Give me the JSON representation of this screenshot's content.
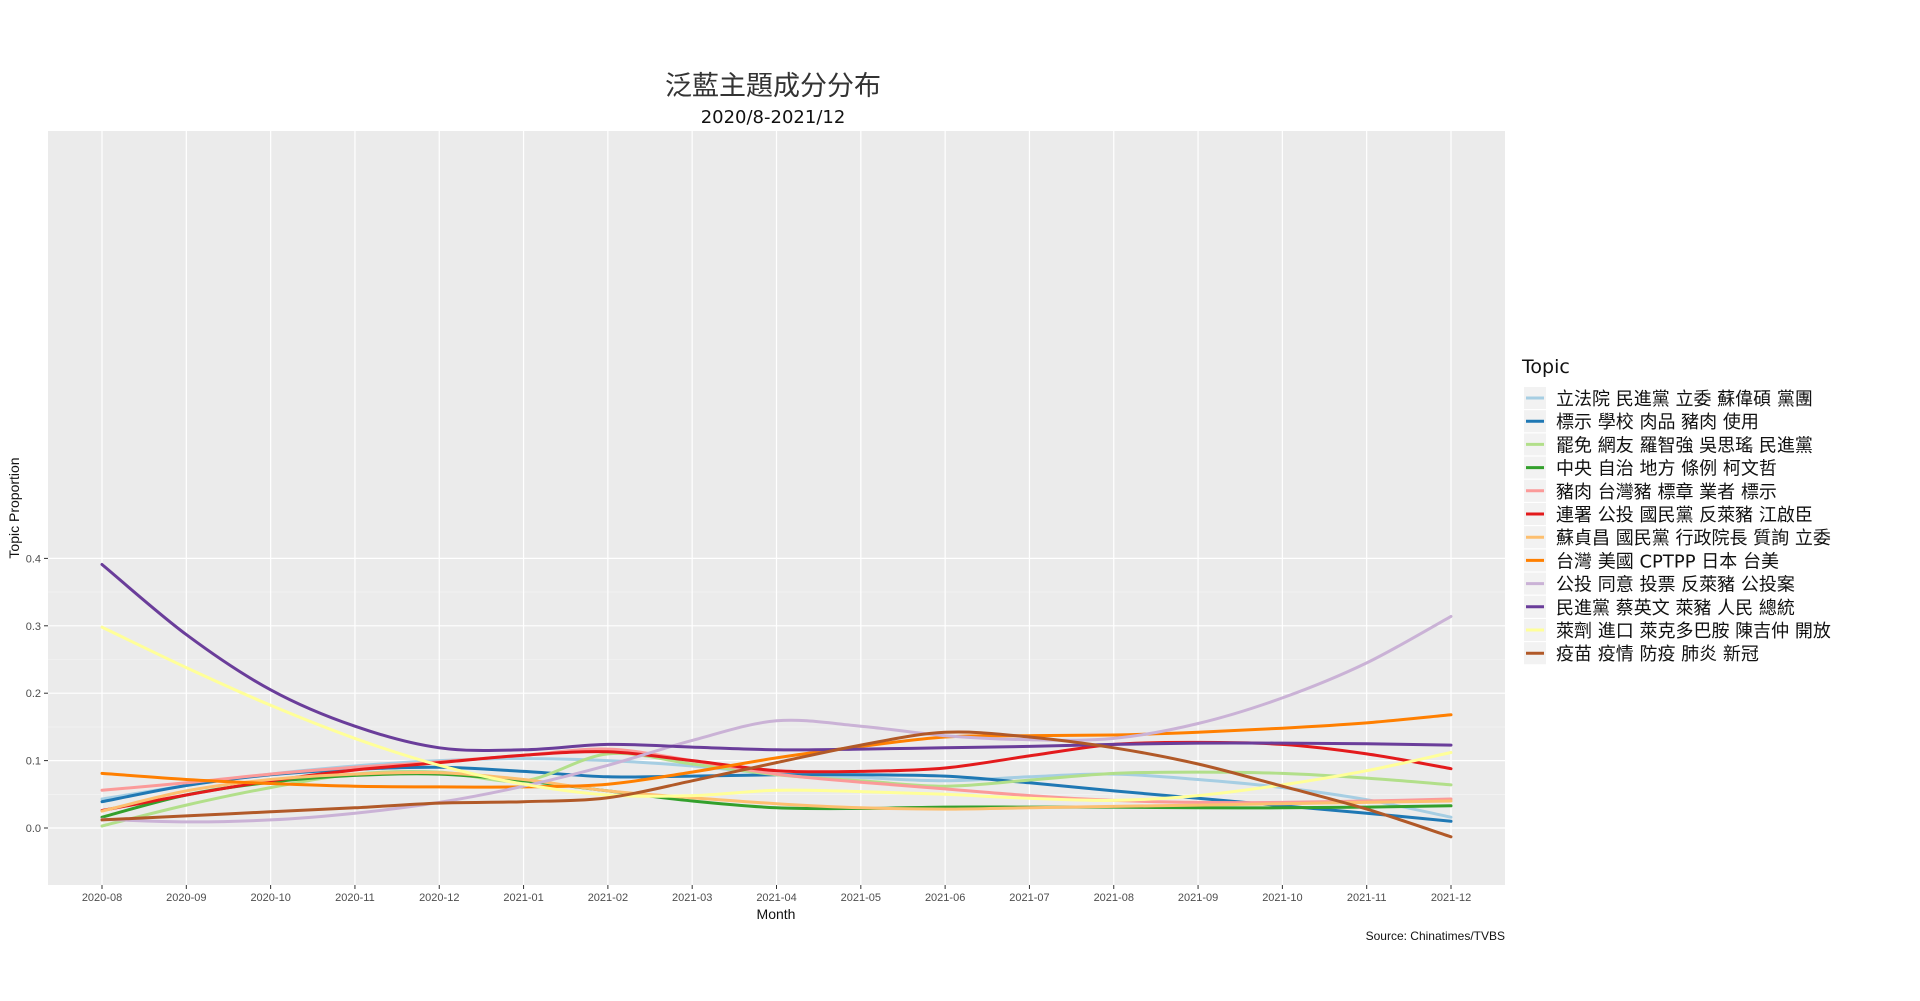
{
  "chart_data": {
    "type": "line",
    "title": "泛藍主題成分分布",
    "subtitle": "2020/8-2021/12",
    "xlabel": "Month",
    "ylabel": "Topic Proportion",
    "caption": "Source: Chinatimes/TVBS",
    "legend_title": "Topic",
    "legend_position": "right",
    "grid": true,
    "ylim": [
      -0.04,
      0.42
    ],
    "yticks": [
      0.0,
      0.1,
      0.2,
      0.3,
      0.4
    ],
    "ytick_labels": [
      "0.0",
      "0.1",
      "0.2",
      "0.3",
      "0.4"
    ],
    "x": [
      "2020-08",
      "2020-09",
      "2020-10",
      "2020-11",
      "2020-12",
      "2021-01",
      "2021-02",
      "2021-03",
      "2021-04",
      "2021-05",
      "2021-06",
      "2021-07",
      "2021-08",
      "2021-09",
      "2021-10",
      "2021-11",
      "2021-12"
    ],
    "series": [
      {
        "name": "立法院 民進黨 立委 蘇偉碩 黨團",
        "color": "#A6CEE3",
        "values": [
          0.043,
          0.063,
          0.08,
          0.092,
          0.1,
          0.103,
          0.1,
          0.092,
          0.08,
          0.075,
          0.07,
          0.076,
          0.08,
          0.072,
          0.06,
          0.042,
          0.016
        ]
      },
      {
        "name": "標示 學校 肉品 豬肉 使用",
        "color": "#1F78B4",
        "values": [
          0.039,
          0.063,
          0.079,
          0.087,
          0.09,
          0.084,
          0.076,
          0.077,
          0.079,
          0.079,
          0.077,
          0.067,
          0.055,
          0.044,
          0.033,
          0.022,
          0.01
        ]
      },
      {
        "name": "罷免 網友 羅智強 吳思瑤 民進黨",
        "color": "#B2DF8A",
        "values": [
          0.003,
          0.034,
          0.06,
          0.08,
          0.083,
          0.07,
          0.11,
          0.095,
          0.079,
          0.07,
          0.062,
          0.071,
          0.081,
          0.083,
          0.081,
          0.074,
          0.064
        ]
      },
      {
        "name": "中央 自治 地方 條例 柯文哲",
        "color": "#33A02C",
        "values": [
          0.016,
          0.049,
          0.068,
          0.078,
          0.08,
          0.07,
          0.055,
          0.04,
          0.03,
          0.029,
          0.031,
          0.031,
          0.031,
          0.03,
          0.03,
          0.031,
          0.033
        ]
      },
      {
        "name": "豬肉 台灣豬 標章 業者 標示",
        "color": "#FB9A99",
        "values": [
          0.056,
          0.067,
          0.08,
          0.09,
          0.098,
          0.108,
          0.117,
          0.1,
          0.08,
          0.068,
          0.058,
          0.048,
          0.041,
          0.038,
          0.038,
          0.04,
          0.043
        ]
      },
      {
        "name": "連署 公投 國民黨 反萊豬 江啟臣",
        "color": "#E31A1C",
        "values": [
          0.026,
          0.049,
          0.07,
          0.086,
          0.097,
          0.108,
          0.113,
          0.1,
          0.085,
          0.084,
          0.089,
          0.107,
          0.124,
          0.127,
          0.124,
          0.11,
          0.088
        ]
      },
      {
        "name": "蘇貞昌 國民黨 行政院長 質詢 立委",
        "color": "#FDBF6F",
        "values": [
          0.025,
          0.055,
          0.072,
          0.08,
          0.082,
          0.072,
          0.055,
          0.045,
          0.036,
          0.03,
          0.028,
          0.03,
          0.032,
          0.034,
          0.036,
          0.038,
          0.04
        ]
      },
      {
        "name": "台灣 美國 CPTPP 日本 台美",
        "color": "#FF7F00",
        "values": [
          0.081,
          0.072,
          0.066,
          0.062,
          0.061,
          0.061,
          0.065,
          0.083,
          0.104,
          0.121,
          0.135,
          0.137,
          0.138,
          0.142,
          0.148,
          0.156,
          0.168
        ]
      },
      {
        "name": "公投 同意 投票 反萊豬 公投案",
        "color": "#CAB2D6",
        "values": [
          0.013,
          0.009,
          0.012,
          0.022,
          0.038,
          0.062,
          0.093,
          0.13,
          0.159,
          0.151,
          0.137,
          0.131,
          0.133,
          0.155,
          0.193,
          0.245,
          0.314
        ]
      },
      {
        "name": "民進黨 蔡英文 萊豬 人民 總統",
        "color": "#6A3D9A",
        "values": [
          0.391,
          0.287,
          0.205,
          0.151,
          0.119,
          0.116,
          0.124,
          0.12,
          0.116,
          0.117,
          0.119,
          0.121,
          0.124,
          0.126,
          0.126,
          0.125,
          0.123
        ]
      },
      {
        "name": "萊劑 進口 萊克多巴胺 陳吉仲 開放",
        "color": "#FFFF99",
        "values": [
          0.298,
          0.238,
          0.182,
          0.133,
          0.093,
          0.065,
          0.049,
          0.048,
          0.056,
          0.054,
          0.05,
          0.044,
          0.041,
          0.048,
          0.064,
          0.085,
          0.112
        ]
      },
      {
        "name": "疫苗 疫情 防疫 肺炎 新冠",
        "color": "#B15928",
        "values": [
          0.012,
          0.018,
          0.024,
          0.03,
          0.037,
          0.039,
          0.045,
          0.07,
          0.097,
          0.123,
          0.142,
          0.135,
          0.119,
          0.095,
          0.062,
          0.028,
          -0.013
        ]
      }
    ]
  }
}
